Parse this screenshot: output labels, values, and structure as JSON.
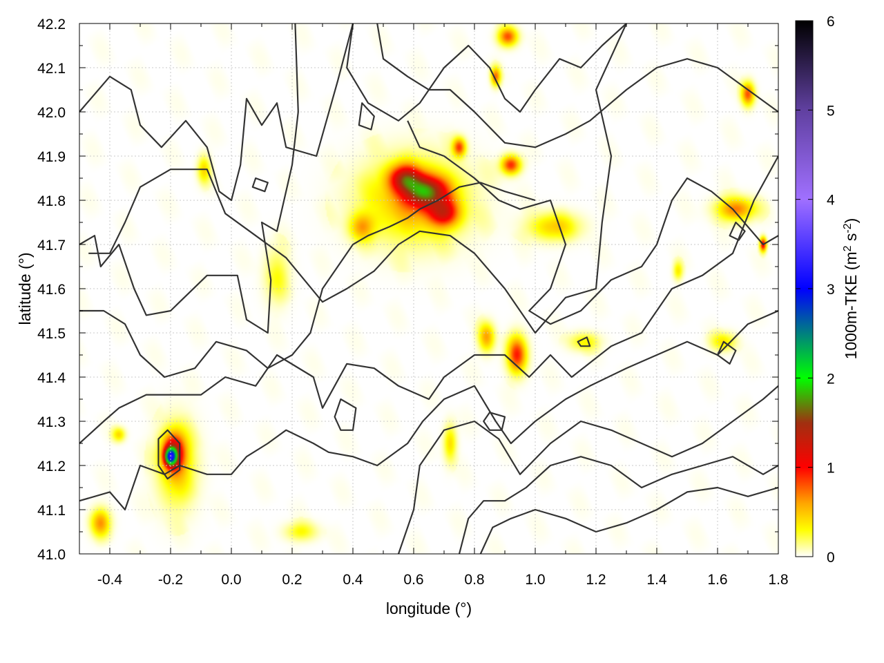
{
  "chart_data": {
    "type": "heatmap",
    "xlabel": "longitude (°)",
    "ylabel": "latitude (°)",
    "xlim": [
      -0.5,
      1.8
    ],
    "ylim": [
      41.0,
      42.2
    ],
    "xticks": [
      "-0.4",
      "-0.2",
      "0.0",
      "0.2",
      "0.4",
      "0.6",
      "0.8",
      "1.0",
      "1.2",
      "1.4",
      "1.6",
      "1.8"
    ],
    "yticks": [
      "41.0",
      "41.1",
      "41.2",
      "41.3",
      "41.4",
      "41.5",
      "41.6",
      "41.7",
      "41.8",
      "41.9",
      "42.0",
      "42.1",
      "42.2"
    ],
    "grid": true,
    "colorbar": {
      "label": "1000m-TKE (m² s⁻²)",
      "label_main": "1000m-TKE (m",
      "label_sup1": "2",
      "label_mid": " s",
      "label_sup2": "-2",
      "label_end": ")",
      "range": [
        0,
        6
      ],
      "ticks": [
        "0",
        "1",
        "2",
        "3",
        "4",
        "5",
        "6"
      ],
      "stops": [
        {
          "value": 0.0,
          "color": "#ffffff"
        },
        {
          "value": 0.3,
          "color": "#ffff00"
        },
        {
          "value": 0.6,
          "color": "#ffa500"
        },
        {
          "value": 1.0,
          "color": "#ff0000"
        },
        {
          "value": 1.5,
          "color": "#a03010"
        },
        {
          "value": 2.0,
          "color": "#00ff00"
        },
        {
          "value": 3.0,
          "color": "#0000ff"
        },
        {
          "value": 4.0,
          "color": "#a070ff"
        },
        {
          "value": 5.0,
          "color": "#6040a0"
        },
        {
          "value": 6.0,
          "color": "#000000"
        }
      ]
    },
    "hotspots": [
      {
        "lon": 0.64,
        "lat": 41.82,
        "value": 1.3,
        "rlon": 0.07,
        "rlat": 0.035
      },
      {
        "lon": 0.57,
        "lat": 41.85,
        "value": 1.0,
        "rlon": 0.05,
        "rlat": 0.03
      },
      {
        "lon": 0.7,
        "lat": 41.77,
        "value": 0.9,
        "rlon": 0.05,
        "rlat": 0.03
      },
      {
        "lon": 0.6,
        "lat": 41.8,
        "value": 0.55,
        "rlon": 0.16,
        "rlat": 0.09
      },
      {
        "lon": 0.43,
        "lat": 41.74,
        "value": 0.5,
        "rlon": 0.04,
        "rlat": 0.03
      },
      {
        "lon": 0.94,
        "lat": 41.45,
        "value": 0.9,
        "rlon": 0.03,
        "rlat": 0.04
      },
      {
        "lon": 0.84,
        "lat": 41.49,
        "value": 0.6,
        "rlon": 0.025,
        "rlat": 0.03
      },
      {
        "lon": -0.2,
        "lat": 41.22,
        "value": 2.0,
        "rlon": 0.018,
        "rlat": 0.018
      },
      {
        "lon": -0.19,
        "lat": 41.23,
        "value": 1.1,
        "rlon": 0.035,
        "rlat": 0.04
      },
      {
        "lon": -0.18,
        "lat": 41.2,
        "value": 0.45,
        "rlon": 0.06,
        "rlat": 0.09
      },
      {
        "lon": -0.43,
        "lat": 41.07,
        "value": 0.6,
        "rlon": 0.03,
        "rlat": 0.03
      },
      {
        "lon": 0.91,
        "lat": 42.17,
        "value": 0.8,
        "rlon": 0.03,
        "rlat": 0.02
      },
      {
        "lon": 0.87,
        "lat": 42.08,
        "value": 0.7,
        "rlon": 0.015,
        "rlat": 0.02
      },
      {
        "lon": 0.92,
        "lat": 41.88,
        "value": 0.9,
        "rlon": 0.03,
        "rlat": 0.02
      },
      {
        "lon": 0.75,
        "lat": 41.92,
        "value": 0.8,
        "rlon": 0.02,
        "rlat": 0.02
      },
      {
        "lon": 1.7,
        "lat": 42.04,
        "value": 0.8,
        "rlon": 0.02,
        "rlat": 0.025
      },
      {
        "lon": 1.66,
        "lat": 41.78,
        "value": 0.7,
        "rlon": 0.06,
        "rlat": 0.025
      },
      {
        "lon": 1.75,
        "lat": 41.7,
        "value": 1.1,
        "rlon": 0.01,
        "rlat": 0.015
      },
      {
        "lon": 1.06,
        "lat": 41.74,
        "value": 0.45,
        "rlon": 0.08,
        "rlat": 0.03
      },
      {
        "lon": 0.72,
        "lat": 41.25,
        "value": 0.4,
        "rlon": 0.02,
        "rlat": 0.04
      },
      {
        "lon": 0.23,
        "lat": 41.05,
        "value": 0.3,
        "rlon": 0.05,
        "rlat": 0.02
      },
      {
        "lon": -0.09,
        "lat": 41.87,
        "value": 0.4,
        "rlon": 0.02,
        "rlat": 0.03
      },
      {
        "lon": 1.62,
        "lat": 41.48,
        "value": 0.35,
        "rlon": 0.04,
        "rlat": 0.02
      },
      {
        "lon": 1.16,
        "lat": 41.48,
        "value": 0.3,
        "rlon": 0.05,
        "rlat": 0.02
      },
      {
        "lon": 0.15,
        "lat": 41.63,
        "value": 0.25,
        "rlon": 0.04,
        "rlat": 0.06
      },
      {
        "lon": -0.37,
        "lat": 41.27,
        "value": 0.4,
        "rlon": 0.02,
        "rlat": 0.015
      },
      {
        "lon": 1.47,
        "lat": 41.64,
        "value": 0.35,
        "rlon": 0.015,
        "rlat": 0.02
      }
    ],
    "contours": [
      [
        [
          -0.5,
          42.0
        ],
        [
          -0.4,
          42.08
        ],
        [
          -0.33,
          42.05
        ],
        [
          -0.3,
          41.97
        ],
        [
          -0.23,
          41.92
        ],
        [
          -0.15,
          41.98
        ],
        [
          -0.08,
          41.92
        ],
        [
          -0.04,
          41.82
        ],
        [
          0.0,
          41.8
        ],
        [
          0.03,
          41.88
        ],
        [
          0.05,
          42.03
        ],
        [
          0.1,
          41.97
        ],
        [
          0.15,
          42.02
        ],
        [
          0.18,
          41.92
        ],
        [
          0.28,
          41.9
        ],
        [
          0.35,
          42.07
        ],
        [
          0.4,
          42.2
        ]
      ],
      [
        [
          -0.5,
          41.7
        ],
        [
          -0.45,
          41.72
        ],
        [
          -0.43,
          41.65
        ],
        [
          -0.37,
          41.7
        ],
        [
          -0.32,
          41.6
        ],
        [
          -0.28,
          41.54
        ],
        [
          -0.2,
          41.55
        ],
        [
          -0.08,
          41.63
        ],
        [
          0.02,
          41.63
        ],
        [
          0.05,
          41.53
        ],
        [
          0.12,
          41.5
        ],
        [
          0.13,
          41.62
        ],
        [
          0.1,
          41.75
        ],
        [
          0.15,
          41.73
        ],
        [
          0.2,
          41.88
        ],
        [
          0.22,
          42.0
        ],
        [
          0.21,
          42.2
        ]
      ],
      [
        [
          -0.47,
          41.68
        ],
        [
          -0.4,
          41.68
        ],
        [
          -0.35,
          41.75
        ],
        [
          -0.3,
          41.83
        ],
        [
          -0.2,
          41.87
        ],
        [
          -0.08,
          41.87
        ],
        [
          -0.02,
          41.77
        ],
        [
          0.08,
          41.72
        ],
        [
          0.18,
          41.67
        ],
        [
          0.3,
          41.57
        ],
        [
          0.38,
          41.6
        ],
        [
          0.47,
          41.64
        ],
        [
          0.55,
          41.7
        ],
        [
          0.62,
          41.73
        ],
        [
          0.72,
          41.72
        ],
        [
          0.8,
          41.68
        ],
        [
          0.9,
          41.6
        ],
        [
          1.0,
          41.5
        ],
        [
          1.1,
          41.58
        ],
        [
          1.2,
          41.6
        ],
        [
          1.22,
          41.75
        ],
        [
          1.25,
          41.9
        ],
        [
          1.2,
          42.05
        ],
        [
          1.3,
          42.2
        ]
      ],
      [
        [
          -0.5,
          41.25
        ],
        [
          -0.42,
          41.3
        ],
        [
          -0.37,
          41.33
        ],
        [
          -0.28,
          41.36
        ],
        [
          -0.2,
          41.36
        ],
        [
          -0.1,
          41.36
        ],
        [
          -0.02,
          41.4
        ],
        [
          0.08,
          41.38
        ],
        [
          0.15,
          41.45
        ],
        [
          0.27,
          41.4
        ],
        [
          0.3,
          41.33
        ],
        [
          0.38,
          41.43
        ],
        [
          0.47,
          41.42
        ],
        [
          0.55,
          41.38
        ],
        [
          0.65,
          41.35
        ],
        [
          0.7,
          41.4
        ],
        [
          0.8,
          41.45
        ],
        [
          0.9,
          41.45
        ],
        [
          0.98,
          41.4
        ],
        [
          1.05,
          41.45
        ],
        [
          1.12,
          41.4
        ],
        [
          1.25,
          41.47
        ],
        [
          1.35,
          41.5
        ],
        [
          1.45,
          41.6
        ],
        [
          1.55,
          41.63
        ],
        [
          1.65,
          41.68
        ],
        [
          1.72,
          41.8
        ],
        [
          1.8,
          41.9
        ]
      ],
      [
        [
          -0.5,
          41.12
        ],
        [
          -0.4,
          41.14
        ],
        [
          -0.35,
          41.1
        ],
        [
          -0.3,
          41.2
        ],
        [
          -0.22,
          41.18
        ],
        [
          -0.17,
          41.2
        ],
        [
          -0.08,
          41.18
        ],
        [
          0.0,
          41.18
        ],
        [
          0.05,
          41.22
        ],
        [
          0.12,
          41.25
        ],
        [
          0.18,
          41.28
        ],
        [
          0.27,
          41.25
        ],
        [
          0.32,
          41.23
        ],
        [
          0.4,
          41.22
        ],
        [
          0.48,
          41.2
        ],
        [
          0.58,
          41.25
        ],
        [
          0.63,
          41.3
        ],
        [
          0.7,
          41.35
        ],
        [
          0.8,
          41.38
        ],
        [
          0.87,
          41.3
        ],
        [
          0.92,
          41.25
        ],
        [
          1.0,
          41.3
        ],
        [
          1.1,
          41.35
        ],
        [
          1.18,
          41.38
        ],
        [
          1.3,
          41.42
        ],
        [
          1.4,
          41.45
        ],
        [
          1.5,
          41.48
        ],
        [
          1.6,
          41.45
        ],
        [
          1.7,
          41.52
        ],
        [
          1.8,
          41.55
        ]
      ],
      [
        [
          0.55,
          41.0
        ],
        [
          0.6,
          41.1
        ],
        [
          0.62,
          41.2
        ],
        [
          0.7,
          41.28
        ],
        [
          0.8,
          41.3
        ],
        [
          0.88,
          41.26
        ],
        [
          0.95,
          41.18
        ],
        [
          1.05,
          41.25
        ],
        [
          1.15,
          41.3
        ],
        [
          1.25,
          41.28
        ],
        [
          1.35,
          41.25
        ],
        [
          1.45,
          41.22
        ],
        [
          1.55,
          41.25
        ],
        [
          1.65,
          41.3
        ],
        [
          1.75,
          41.35
        ],
        [
          1.8,
          41.38
        ]
      ],
      [
        [
          0.75,
          41.0
        ],
        [
          0.78,
          41.08
        ],
        [
          0.83,
          41.12
        ],
        [
          0.9,
          41.12
        ],
        [
          0.97,
          41.15
        ],
        [
          1.05,
          41.2
        ],
        [
          1.15,
          41.22
        ],
        [
          1.25,
          41.2
        ],
        [
          1.35,
          41.15
        ],
        [
          1.45,
          41.18
        ],
        [
          1.55,
          41.2
        ],
        [
          1.65,
          41.22
        ],
        [
          1.75,
          41.18
        ],
        [
          1.8,
          41.2
        ]
      ],
      [
        [
          0.82,
          41.0
        ],
        [
          0.86,
          41.06
        ],
        [
          0.92,
          41.08
        ],
        [
          1.0,
          41.1
        ],
        [
          1.1,
          41.08
        ],
        [
          1.2,
          41.05
        ],
        [
          1.3,
          41.07
        ],
        [
          1.4,
          41.1
        ],
        [
          1.5,
          41.14
        ],
        [
          1.6,
          41.15
        ],
        [
          1.7,
          41.13
        ],
        [
          1.8,
          41.15
        ]
      ],
      [
        [
          0.4,
          42.2
        ],
        [
          0.38,
          42.1
        ],
        [
          0.45,
          42.02
        ],
        [
          0.55,
          41.98
        ],
        [
          0.62,
          42.02
        ],
        [
          0.7,
          42.1
        ],
        [
          0.78,
          42.15
        ],
        [
          0.85,
          42.1
        ],
        [
          0.9,
          42.03
        ],
        [
          0.95,
          42.0
        ],
        [
          1.0,
          42.05
        ],
        [
          1.08,
          42.12
        ],
        [
          1.15,
          42.1
        ],
        [
          1.22,
          42.15
        ],
        [
          1.3,
          42.2
        ]
      ],
      [
        [
          0.48,
          42.2
        ],
        [
          0.5,
          42.12
        ],
        [
          0.58,
          42.08
        ],
        [
          0.65,
          42.05
        ],
        [
          0.72,
          42.05
        ],
        [
          0.8,
          42.0
        ],
        [
          0.9,
          41.93
        ],
        [
          1.0,
          41.92
        ],
        [
          1.1,
          41.95
        ],
        [
          1.18,
          41.98
        ],
        [
          1.3,
          42.05
        ],
        [
          1.4,
          42.1
        ],
        [
          1.5,
          42.12
        ],
        [
          1.6,
          42.1
        ],
        [
          1.7,
          42.05
        ],
        [
          1.8,
          42.0
        ]
      ],
      [
        [
          0.58,
          41.98
        ],
        [
          0.62,
          41.92
        ],
        [
          0.7,
          41.9
        ],
        [
          0.8,
          41.85
        ],
        [
          0.88,
          41.8
        ],
        [
          0.95,
          41.78
        ],
        [
          1.05,
          41.8
        ],
        [
          1.1,
          41.7
        ],
        [
          1.05,
          41.6
        ],
        [
          0.98,
          41.55
        ],
        [
          1.05,
          41.52
        ],
        [
          1.15,
          41.55
        ],
        [
          1.25,
          41.62
        ],
        [
          1.35,
          41.65
        ],
        [
          1.4,
          41.7
        ],
        [
          1.45,
          41.8
        ],
        [
          1.5,
          41.85
        ],
        [
          1.58,
          41.82
        ],
        [
          1.65,
          41.78
        ],
        [
          1.75,
          41.7
        ],
        [
          1.8,
          41.72
        ]
      ],
      [
        [
          -0.5,
          41.55
        ],
        [
          -0.42,
          41.55
        ],
        [
          -0.35,
          41.52
        ],
        [
          -0.3,
          41.45
        ],
        [
          -0.22,
          41.4
        ],
        [
          -0.12,
          41.42
        ],
        [
          -0.05,
          41.48
        ],
        [
          0.05,
          41.46
        ],
        [
          0.12,
          41.42
        ],
        [
          0.2,
          41.45
        ],
        [
          0.26,
          41.5
        ],
        [
          0.3,
          41.6
        ],
        [
          0.35,
          41.65
        ],
        [
          0.4,
          41.7
        ],
        [
          0.45,
          41.72
        ],
        [
          0.52,
          41.74
        ],
        [
          0.58,
          41.76
        ],
        [
          0.62,
          41.78
        ],
        [
          0.68,
          41.8
        ],
        [
          0.75,
          41.83
        ],
        [
          0.82,
          41.84
        ],
        [
          0.9,
          41.82
        ],
        [
          1.0,
          41.8
        ]
      ]
    ],
    "closed_contours": [
      [
        [
          -0.21,
          41.28
        ],
        [
          -0.17,
          41.25
        ],
        [
          -0.17,
          41.19
        ],
        [
          -0.21,
          41.17
        ],
        [
          -0.24,
          41.2
        ],
        [
          -0.24,
          41.26
        ]
      ],
      [
        [
          0.36,
          41.35
        ],
        [
          0.41,
          41.33
        ],
        [
          0.4,
          41.28
        ],
        [
          0.36,
          41.28
        ],
        [
          0.34,
          41.31
        ]
      ],
      [
        [
          0.85,
          41.32
        ],
        [
          0.9,
          41.31
        ],
        [
          0.89,
          41.28
        ],
        [
          0.85,
          41.28
        ],
        [
          0.83,
          41.3
        ]
      ],
      [
        [
          0.43,
          42.02
        ],
        [
          0.47,
          41.99
        ],
        [
          0.46,
          41.96
        ],
        [
          0.42,
          41.97
        ]
      ],
      [
        [
          1.14,
          41.48
        ],
        [
          1.17,
          41.49
        ],
        [
          1.18,
          41.47
        ],
        [
          1.15,
          41.47
        ]
      ],
      [
        [
          0.08,
          41.85
        ],
        [
          0.12,
          41.84
        ],
        [
          0.11,
          41.82
        ],
        [
          0.07,
          41.83
        ]
      ],
      [
        [
          1.62,
          41.48
        ],
        [
          1.66,
          41.46
        ],
        [
          1.64,
          41.43
        ],
        [
          1.6,
          41.45
        ]
      ],
      [
        [
          1.66,
          41.75
        ],
        [
          1.69,
          41.73
        ],
        [
          1.67,
          41.71
        ],
        [
          1.64,
          41.72
        ]
      ]
    ]
  }
}
